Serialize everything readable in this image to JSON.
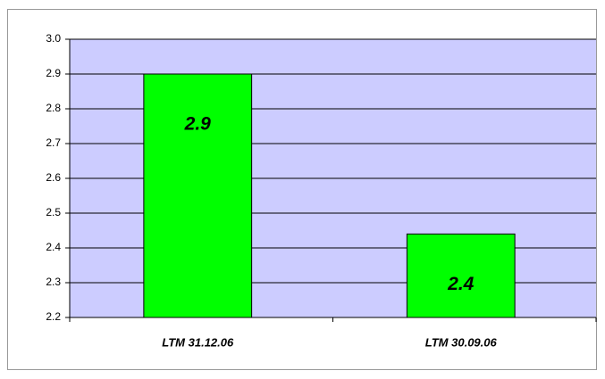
{
  "chart_data": {
    "type": "bar",
    "categories": [
      "LTM 31.12.06",
      "LTM 30.09.06"
    ],
    "values": [
      2.9,
      2.44
    ],
    "value_labels": [
      "2.9",
      "2.4"
    ],
    "color": "#00ff00",
    "background": "#ccccff",
    "ylim": [
      2.2,
      3.0
    ],
    "yticks": [
      2.2,
      2.3,
      2.4,
      2.5,
      2.6,
      2.7,
      2.8,
      2.9,
      {
        "value": 3.0,
        "label": "3.0"
      }
    ],
    "grid": true
  }
}
